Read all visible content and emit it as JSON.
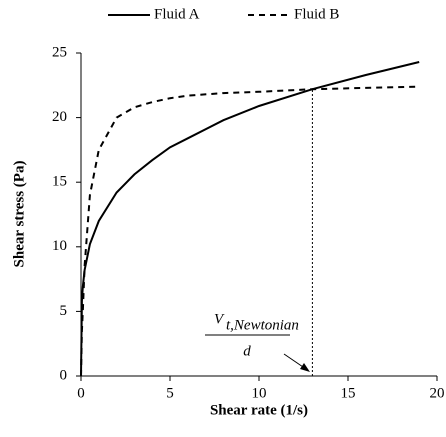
{
  "chart_data": {
    "type": "line",
    "legend": "top",
    "x": [
      0,
      0.05,
      0.1,
      0.2,
      0.5,
      1,
      2,
      3,
      4,
      5,
      6,
      8,
      10,
      13,
      16,
      19
    ],
    "series": [
      {
        "name": "Fluid A",
        "color": "#000000",
        "dash": "solid",
        "values": [
          0,
          5.8,
          6.9,
          8.2,
          10.2,
          12,
          14.2,
          15.6,
          16.7,
          17.7,
          18.4,
          19.8,
          20.9,
          22.2,
          23.3,
          24.3
        ]
      },
      {
        "name": "Fluid B",
        "color": "#000000",
        "dash": "dashed",
        "values": [
          0,
          3.5,
          5,
          8.5,
          14,
          17.5,
          20,
          20.8,
          21.2,
          21.5,
          21.7,
          21.9,
          22,
          22.2,
          22.3,
          22.4
        ]
      }
    ],
    "xlabel": "Shear rate (1/s)",
    "ylabel": "Shear stress (Pa)",
    "xlim": [
      0,
      20
    ],
    "xticks": [
      0,
      5,
      10,
      15,
      20
    ],
    "ylim": [
      0,
      25
    ],
    "yticks": [
      0,
      5,
      10,
      15,
      20,
      25
    ],
    "vline": 13,
    "annotation": {
      "numerator": "V",
      "subscript": "t,Newtonian",
      "denominator": "d"
    }
  }
}
